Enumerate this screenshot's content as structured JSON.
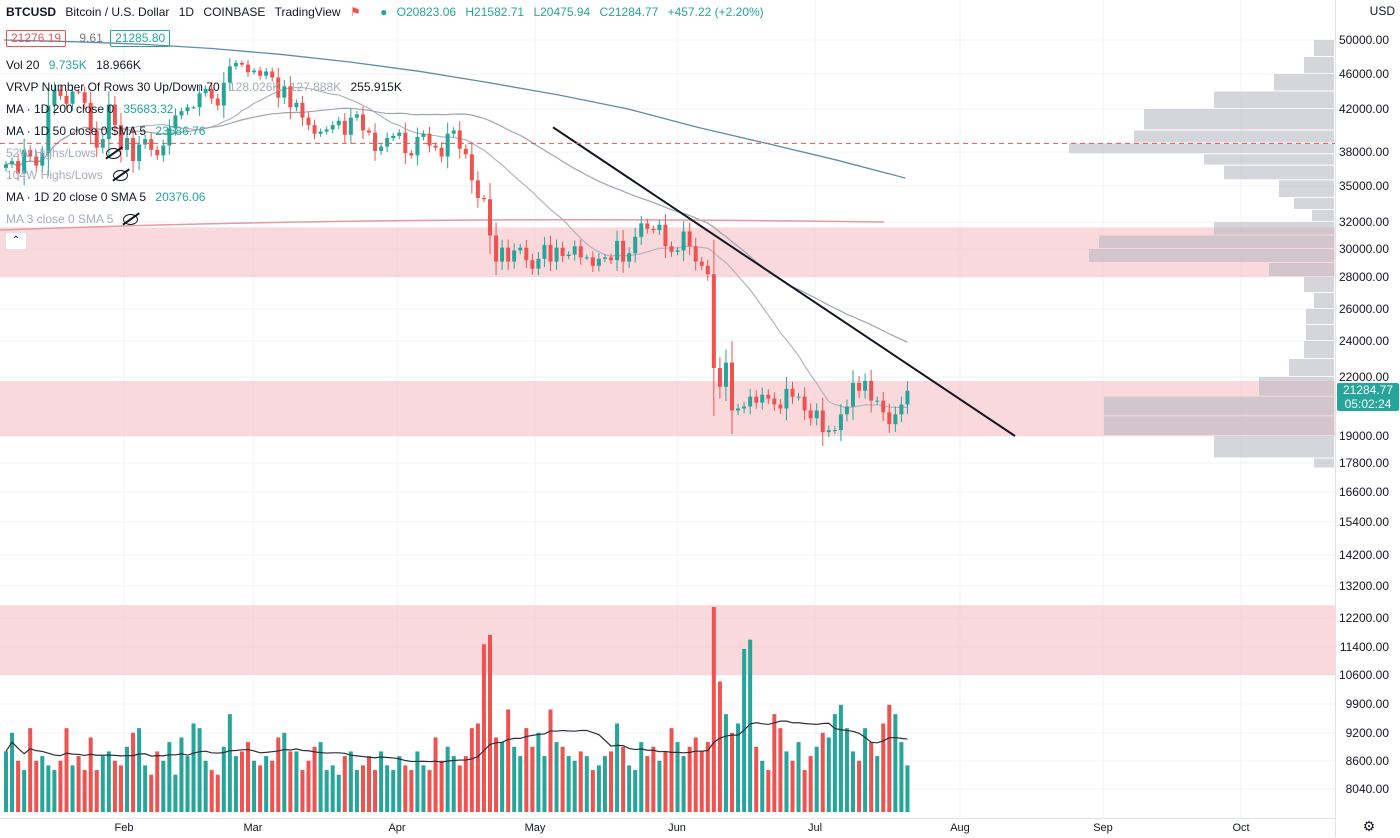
{
  "header": {
    "symbol": "BTCUSD",
    "name": "Bitcoin / U.S. Dollar",
    "interval": "1D",
    "exchange": "COINBASE",
    "source": "TradingView",
    "ohlc": {
      "o": "O20823.06",
      "h": "H21582.71",
      "l": "L20475.94",
      "c": "C21284.77",
      "chg": "+457.22 (+2.20%)"
    },
    "bid": "21276.19",
    "spread": "9.61",
    "ask": "21285.80"
  },
  "indicators": [
    {
      "label": "Vol 20",
      "vals": [
        "9.735K",
        "18.966K"
      ]
    },
    {
      "label": "VRVP Number Of Rows 30 Up/Down 70",
      "vals": [
        "128.026K",
        "127.888K",
        "255.915K"
      ]
    },
    {
      "label": "MA · 1D 200 close 0",
      "vals": [
        "35683.32"
      ]
    },
    {
      "label": "MA · 1D 50 close 0 SMA 5",
      "vals": [
        "23586.76"
      ]
    },
    {
      "label": "52W Highs/Lows",
      "vals": []
    },
    {
      "label": "104W Highs/Lows",
      "vals": []
    },
    {
      "label": "MA · 1D 20 close 0 SMA 5",
      "vals": [
        "20376.06"
      ]
    },
    {
      "label": "MA 3 close 0 SMA 5",
      "vals": []
    }
  ],
  "price_axis": {
    "currency": "USD",
    "labels": [
      "50000.00",
      "46000.00",
      "42000.00",
      "38000.00",
      "35000.00",
      "32000.00",
      "30000.00",
      "28000.00",
      "26000.00",
      "24000.00",
      "22000.00",
      "19000.00",
      "17800.00",
      "16600.00",
      "15400.00",
      "14200.00",
      "13200.00",
      "12200.00",
      "11400.00",
      "10600.00",
      "9900.00",
      "9200.00",
      "8600.00",
      "8040.00"
    ],
    "current_price": "21284.77",
    "countdown": "05:02:24"
  },
  "time_axis": {
    "labels": [
      "Feb",
      "Mar",
      "Apr",
      "May",
      "Jun",
      "Jul",
      "Aug",
      "Sep",
      "Oct"
    ]
  },
  "chart_data": {
    "type": "candlestick",
    "symbol": "BTCUSD",
    "period": "1D",
    "up_color": "#26a69a",
    "down_color": "#ef5350",
    "candles_close": [
      36900,
      37200,
      36100,
      38200,
      37600,
      36800,
      37900,
      42400,
      44200,
      43500,
      42600,
      44000,
      43900,
      42700,
      40000,
      38400,
      39200,
      42500,
      40500,
      38200,
      39300,
      37200,
      38700,
      39200,
      38200,
      37700,
      38600,
      40200,
      41400,
      41800,
      42200,
      42200,
      43800,
      44300,
      43200,
      42400,
      45000,
      46900,
      47300,
      47100,
      46200,
      46400,
      45800,
      46300,
      45600,
      43300,
      44600,
      42200,
      42700,
      41200,
      40500,
      39700,
      39900,
      40100,
      40500,
      40900,
      39600,
      41200,
      41500,
      40000,
      39800,
      38100,
      38500,
      39300,
      39500,
      39800,
      37900,
      37700,
      39400,
      39700,
      38600,
      38400,
      37600,
      39700,
      40000,
      38300,
      37800,
      35500,
      34000,
      33900,
      31000,
      29100,
      30100,
      29100,
      29900,
      30100,
      29200,
      28600,
      29300,
      30300,
      29100,
      30100,
      29500,
      29600,
      30200,
      29400,
      29400,
      28800,
      29300,
      29400,
      29200,
      30600,
      29100,
      29700,
      30900,
      31900,
      31500,
      31400,
      31800,
      30200,
      29800,
      29900,
      31300,
      30200,
      29100,
      28800,
      28200,
      22500,
      21500,
      22800,
      20300,
      20400,
      20500,
      21000,
      20700,
      21100,
      20900,
      20600,
      20400,
      21400,
      21000,
      21000,
      20300,
      19900,
      20300,
      19200,
      19300,
      19300,
      20100,
      20500,
      21700,
      21300,
      21800,
      20800,
      20800,
      20200,
      19600,
      20100,
      20600,
      21300
    ],
    "volume": [
      13,
      17,
      11,
      9,
      18,
      11,
      12,
      10,
      9,
      11,
      18,
      10,
      12,
      9,
      16,
      9,
      12,
      13,
      11,
      10,
      14,
      17,
      18,
      10,
      8,
      13,
      11,
      15,
      8,
      16,
      12,
      19,
      18,
      11,
      9,
      8,
      14,
      21,
      12,
      13,
      15,
      11,
      10,
      12,
      11,
      16,
      17,
      13,
      13,
      9,
      11,
      14,
      15,
      9,
      10,
      8,
      12,
      13,
      9,
      10,
      12,
      9,
      13,
      10,
      9,
      12,
      10,
      9,
      13,
      10,
      9,
      16,
      11,
      14,
      12,
      10,
      12,
      18,
      19,
      36,
      38,
      16,
      15,
      22,
      14,
      12,
      18,
      14,
      17,
      12,
      22,
      15,
      14,
      12,
      11,
      13,
      12,
      9,
      10,
      12,
      13,
      19,
      14,
      10,
      9,
      15,
      12,
      14,
      11,
      13,
      18,
      15,
      12,
      14,
      16,
      13,
      15,
      44,
      28,
      21,
      17,
      19,
      35,
      37,
      14,
      11,
      9,
      21,
      18,
      13,
      11,
      15,
      9,
      12,
      14,
      17,
      16,
      21,
      23,
      18,
      13,
      11,
      18,
      15,
      12,
      19,
      23,
      21,
      15,
      10
    ],
    "ma200": [
      50000,
      49800,
      49500,
      49000,
      48300,
      47400,
      46300,
      45000,
      43600,
      42000,
      40300,
      38800,
      37300,
      35700
    ],
    "price_ylim": [
      7800,
      50000
    ],
    "zones": [
      [
        28000,
        31600
      ],
      [
        19000,
        21800
      ],
      [
        10600,
        12600
      ]
    ],
    "trendline": [
      [
        40300,
        "May 1"
      ],
      [
        19000,
        "Jul 27"
      ]
    ],
    "hline": 38800
  }
}
